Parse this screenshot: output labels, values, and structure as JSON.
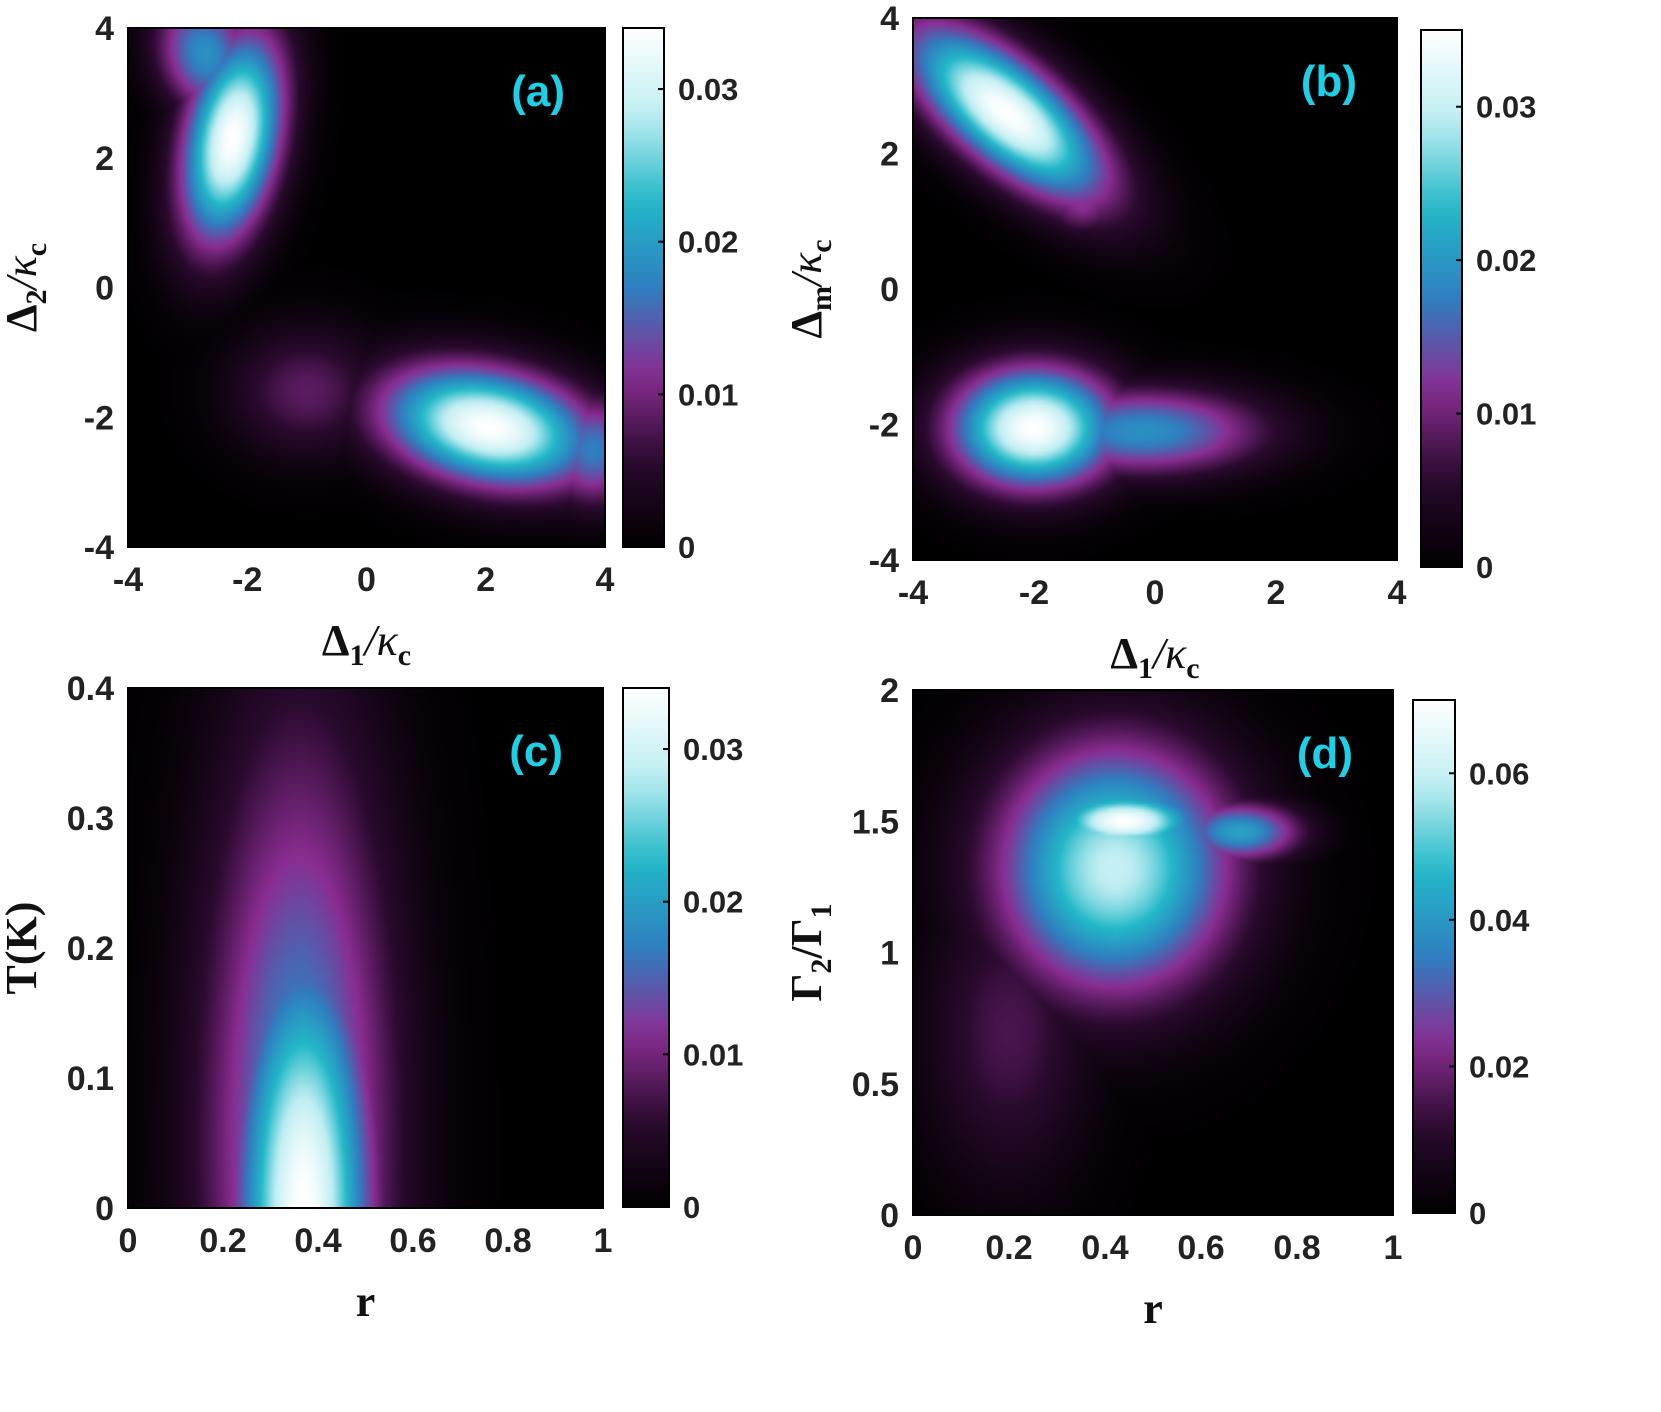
{
  "colors": {
    "colormap": [
      "#000000",
      "#2a0a2e",
      "#8a2d92",
      "#2f7fc0",
      "#22b8c8",
      "#bfeef2",
      "#ffffff"
    ],
    "panel_label": "#1ed0e6",
    "axis": "#000000"
  },
  "chart_data": [
    {
      "type": "heatmap",
      "panel_label": "(a)",
      "xlabel": {
        "main": "Δ",
        "sub": "1",
        "rest": "/κ",
        "sub2": "c"
      },
      "ylabel": {
        "main": "Δ",
        "sub": "2",
        "rest": "/κ",
        "sub2": "c"
      },
      "xlim": [
        -4,
        4
      ],
      "ylim": [
        -4,
        4
      ],
      "xticks": [
        -4,
        -2,
        0,
        2,
        4
      ],
      "yticks": [
        -4,
        -2,
        0,
        2,
        4
      ],
      "colorbar": {
        "range": [
          0,
          0.034
        ],
        "ticks": [
          0,
          0.01,
          0.02,
          0.03
        ],
        "tick_labels": [
          "0",
          "0.01",
          "0.02",
          "0.03"
        ]
      },
      "peaks": [
        {
          "x": -2.2,
          "y": 2.2,
          "value": 0.034
        },
        {
          "x": 2.0,
          "y": -2.1,
          "value": 0.034
        }
      ]
    },
    {
      "type": "heatmap",
      "panel_label": "(b)",
      "xlabel": {
        "main": "Δ",
        "sub": "1",
        "rest": "/κ",
        "sub2": "c"
      },
      "ylabel": {
        "main": "Δ",
        "sub": "m",
        "rest": "/κ",
        "sub2": "c"
      },
      "xlim": [
        -4,
        4
      ],
      "ylim": [
        -4,
        4
      ],
      "xticks": [
        -4,
        -2,
        0,
        2,
        4
      ],
      "yticks": [
        -4,
        -2,
        0,
        2,
        4
      ],
      "colorbar": {
        "range": [
          0,
          0.035
        ],
        "ticks": [
          0,
          0.01,
          0.02,
          0.03
        ],
        "tick_labels": [
          "0",
          "0.01",
          "0.02",
          "0.03"
        ]
      },
      "peaks": [
        {
          "x": -2.5,
          "y": 2.7,
          "value": 0.035
        },
        {
          "x": -2.0,
          "y": -2.0,
          "value": 0.035
        }
      ]
    },
    {
      "type": "heatmap",
      "panel_label": "(c)",
      "xlabel": {
        "main": "r",
        "sub": "",
        "rest": "",
        "sub2": ""
      },
      "ylabel": {
        "main": "T(K)",
        "sub": "",
        "rest": "",
        "sub2": ""
      },
      "xlim": [
        0,
        1
      ],
      "ylim": [
        0,
        0.4
      ],
      "xticks": [
        0,
        0.2,
        0.4,
        0.6,
        0.8,
        1
      ],
      "yticks": [
        0,
        0.1,
        0.2,
        0.3,
        0.4
      ],
      "colorbar": {
        "range": [
          0,
          0.034
        ],
        "ticks": [
          0,
          0.01,
          0.02,
          0.03
        ],
        "tick_labels": [
          "0",
          "0.01",
          "0.02",
          "0.03"
        ]
      },
      "peaks": [
        {
          "x": 0.37,
          "y": 0.0,
          "value": 0.034
        }
      ]
    },
    {
      "type": "heatmap",
      "panel_label": "(d)",
      "xlabel": {
        "main": "r",
        "sub": "",
        "rest": "",
        "sub2": ""
      },
      "ylabel": {
        "main": "Γ",
        "sub": "2",
        "rest": "/Γ",
        "sub2": "1"
      },
      "xlim": [
        0,
        1
      ],
      "ylim": [
        0,
        2
      ],
      "xticks": [
        0,
        0.2,
        0.4,
        0.6,
        0.8,
        1
      ],
      "yticks": [
        0,
        0.5,
        1,
        1.5,
        2
      ],
      "colorbar": {
        "range": [
          0,
          0.07
        ],
        "ticks": [
          0,
          0.02,
          0.04,
          0.06
        ],
        "tick_labels": [
          "0",
          "0.02",
          "0.04",
          "0.06"
        ]
      },
      "peaks": [
        {
          "x": 0.43,
          "y": 1.5,
          "value": 0.07
        }
      ]
    }
  ]
}
